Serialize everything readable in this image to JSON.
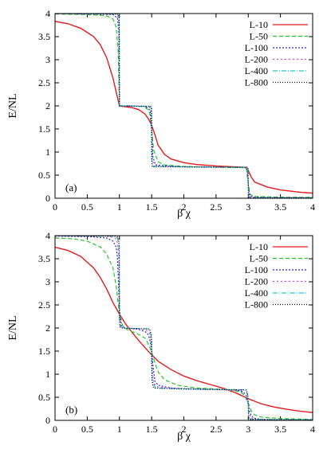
{
  "chart_data": [
    {
      "type": "line",
      "panel_label": "(a)",
      "xlabel": "β χ",
      "ylabel": "E/NL",
      "xlim": [
        0,
        4
      ],
      "ylim": [
        0,
        4
      ],
      "xticks": [
        "0",
        "0.5",
        "1",
        "1.5",
        "2",
        "2.5",
        "3",
        "3.5",
        "4"
      ],
      "yticks": [
        "0",
        "0.5",
        "1",
        "1.5",
        "2",
        "2.5",
        "3",
        "3.5",
        "4"
      ],
      "legend_position": "top-right",
      "series": [
        {
          "name": "L-10",
          "color": "#e41a1c",
          "dash": "solid",
          "x": [
            0,
            0.2,
            0.4,
            0.6,
            0.7,
            0.8,
            0.9,
            0.95,
            1.0,
            1.05,
            1.1,
            1.2,
            1.3,
            1.4,
            1.45,
            1.5,
            1.55,
            1.6,
            1.7,
            1.8,
            2.0,
            2.2,
            2.5,
            2.8,
            2.95,
            3.0,
            3.05,
            3.1,
            3.3,
            3.5,
            3.8,
            4.0
          ],
          "y": [
            3.83,
            3.78,
            3.68,
            3.5,
            3.33,
            3.05,
            2.6,
            2.3,
            2.0,
            1.99,
            1.98,
            1.96,
            1.92,
            1.82,
            1.72,
            1.58,
            1.38,
            1.15,
            0.95,
            0.85,
            0.77,
            0.73,
            0.7,
            0.68,
            0.67,
            0.6,
            0.45,
            0.35,
            0.24,
            0.18,
            0.13,
            0.11
          ]
        },
        {
          "name": "L-50",
          "color": "#22c822",
          "dash": "5,3",
          "x": [
            0,
            0.5,
            0.8,
            0.9,
            0.95,
            0.98,
            1.0,
            1.02,
            1.05,
            1.2,
            1.4,
            1.47,
            1.5,
            1.53,
            1.6,
            1.7,
            2.0,
            2.5,
            2.97,
            3.0,
            3.03,
            3.1,
            3.3,
            3.6,
            4.0
          ],
          "y": [
            3.99,
            3.98,
            3.95,
            3.88,
            3.7,
            3.2,
            2.0,
            2.0,
            2.0,
            2.0,
            1.98,
            1.85,
            1.5,
            1.05,
            0.79,
            0.72,
            0.69,
            0.67,
            0.66,
            0.3,
            0.08,
            0.04,
            0.03,
            0.02,
            0.02
          ]
        },
        {
          "name": "L-100",
          "color": "#2b2bd8",
          "dash": "2,2",
          "x": [
            0,
            0.9,
            0.97,
            0.99,
            1.0,
            1.01,
            1.03,
            1.4,
            1.48,
            1.5,
            1.52,
            1.56,
            2.0,
            2.98,
            3.0,
            3.02,
            3.1,
            4.0
          ],
          "y": [
            4.0,
            3.98,
            3.9,
            3.6,
            2.0,
            2.0,
            2.0,
            1.99,
            1.9,
            1.5,
            0.9,
            0.72,
            0.68,
            0.67,
            0.3,
            0.06,
            0.02,
            0.01
          ]
        },
        {
          "name": "L-200",
          "color": "#e040e0",
          "dash": "2,3",
          "x": [
            0,
            0.95,
            0.985,
            0.995,
            1.0,
            1.005,
            1.02,
            1.45,
            1.49,
            1.5,
            1.51,
            1.54,
            2.0,
            2.99,
            3.0,
            3.01,
            3.06,
            4.0
          ],
          "y": [
            4.0,
            3.99,
            3.9,
            3.7,
            2.0,
            2.0,
            2.0,
            1.99,
            1.93,
            1.5,
            0.85,
            0.7,
            0.68,
            0.67,
            0.3,
            0.05,
            0.01,
            0.01
          ]
        },
        {
          "name": "L-400",
          "color": "#20c8c8",
          "dash": "6,2,1,2",
          "x": [
            0,
            0.97,
            0.992,
            0.998,
            1.0,
            1.003,
            1.01,
            1.47,
            1.495,
            1.5,
            1.505,
            1.52,
            2.0,
            2.995,
            3.0,
            3.005,
            3.03,
            4.0
          ],
          "y": [
            4.0,
            3.99,
            3.92,
            3.75,
            2.0,
            2.0,
            2.0,
            1.99,
            1.95,
            1.5,
            0.8,
            0.69,
            0.68,
            0.67,
            0.3,
            0.04,
            0.01,
            0.01
          ]
        },
        {
          "name": "L-800",
          "color": "#000000",
          "dash": "1,2",
          "x": [
            0,
            0.985,
            0.996,
            1.0,
            1.002,
            1.006,
            1.485,
            1.498,
            1.5,
            1.502,
            1.51,
            2.0,
            2.998,
            3.0,
            3.003,
            3.02,
            4.0
          ],
          "y": [
            4.0,
            3.99,
            3.93,
            2.0,
            2.0,
            2.0,
            1.99,
            1.96,
            1.5,
            0.78,
            0.68,
            0.68,
            0.67,
            0.3,
            0.03,
            0.01,
            0.01
          ]
        }
      ]
    },
    {
      "type": "line",
      "panel_label": "(b)",
      "xlabel": "β χ",
      "ylabel": "E/NL",
      "xlim": [
        0,
        4
      ],
      "ylim": [
        0,
        4
      ],
      "xticks": [
        "0",
        "0.5",
        "1",
        "1.5",
        "2",
        "2.5",
        "3",
        "3.5",
        "4"
      ],
      "yticks": [
        "0",
        "0.5",
        "1",
        "1.5",
        "2",
        "2.5",
        "3",
        "3.5",
        "4"
      ],
      "legend_position": "top-right",
      "series": [
        {
          "name": "L-10",
          "color": "#e41a1c",
          "dash": "solid",
          "x": [
            0,
            0.2,
            0.4,
            0.6,
            0.7,
            0.8,
            0.9,
            1.0,
            1.1,
            1.2,
            1.3,
            1.4,
            1.5,
            1.6,
            1.8,
            2.0,
            2.2,
            2.4,
            2.6,
            2.8,
            3.0,
            3.2,
            3.4,
            3.6,
            3.8,
            4.0
          ],
          "y": [
            3.75,
            3.68,
            3.55,
            3.3,
            3.1,
            2.85,
            2.55,
            2.3,
            2.08,
            1.9,
            1.73,
            1.57,
            1.42,
            1.28,
            1.1,
            0.96,
            0.86,
            0.78,
            0.7,
            0.6,
            0.47,
            0.36,
            0.29,
            0.24,
            0.2,
            0.17
          ]
        },
        {
          "name": "L-50",
          "color": "#22c822",
          "dash": "5,3",
          "x": [
            0,
            0.3,
            0.5,
            0.7,
            0.8,
            0.9,
            0.95,
            1.0,
            1.05,
            1.1,
            1.2,
            1.3,
            1.4,
            1.45,
            1.5,
            1.55,
            1.6,
            1.7,
            1.9,
            2.2,
            2.5,
            2.8,
            2.9,
            2.95,
            3.0,
            3.05,
            3.1,
            3.2,
            3.5,
            4.0
          ],
          "y": [
            3.95,
            3.93,
            3.88,
            3.76,
            3.6,
            3.3,
            2.9,
            2.3,
            2.05,
            1.98,
            1.92,
            1.86,
            1.78,
            1.65,
            1.48,
            1.25,
            1.05,
            0.88,
            0.76,
            0.7,
            0.68,
            0.64,
            0.6,
            0.52,
            0.38,
            0.2,
            0.12,
            0.07,
            0.04,
            0.02
          ]
        },
        {
          "name": "L-100",
          "color": "#2b2bd8",
          "dash": "2,2",
          "x": [
            0,
            0.5,
            0.8,
            0.9,
            0.95,
            0.97,
            1.0,
            1.03,
            1.06,
            1.1,
            1.3,
            1.4,
            1.45,
            1.48,
            1.5,
            1.52,
            1.55,
            1.6,
            1.8,
            2.2,
            2.8,
            2.92,
            2.97,
            3.0,
            3.03,
            3.08,
            3.2,
            4.0
          ],
          "y": [
            3.99,
            3.98,
            3.95,
            3.88,
            3.75,
            3.5,
            2.4,
            2.05,
            2.02,
            2.0,
            1.97,
            1.92,
            1.85,
            1.7,
            1.5,
            1.2,
            0.85,
            0.76,
            0.7,
            0.68,
            0.66,
            0.62,
            0.52,
            0.35,
            0.15,
            0.05,
            0.02,
            0.01
          ]
        },
        {
          "name": "L-200",
          "color": "#e040e0",
          "dash": "2,3",
          "x": [
            0,
            0.8,
            0.93,
            0.97,
            0.99,
            1.0,
            1.01,
            1.03,
            1.1,
            1.4,
            1.47,
            1.49,
            1.5,
            1.51,
            1.53,
            1.6,
            2.0,
            2.9,
            2.97,
            2.99,
            3.0,
            3.01,
            3.04,
            3.1,
            4.0
          ],
          "y": [
            4.0,
            3.99,
            3.95,
            3.85,
            3.5,
            2.4,
            2.08,
            2.02,
            2.0,
            1.97,
            1.88,
            1.7,
            1.5,
            1.2,
            0.8,
            0.72,
            0.68,
            0.65,
            0.55,
            0.42,
            0.35,
            0.2,
            0.05,
            0.02,
            0.01
          ]
        },
        {
          "name": "L-400",
          "color": "#20c8c8",
          "dash": "6,2,1,2",
          "x": [
            0,
            0.9,
            0.97,
            0.99,
            0.996,
            1.0,
            1.004,
            1.01,
            1.05,
            1.45,
            1.49,
            1.497,
            1.5,
            1.503,
            1.51,
            1.56,
            2.0,
            2.95,
            2.99,
            2.996,
            3.0,
            3.004,
            3.01,
            3.05,
            4.0
          ],
          "y": [
            4.0,
            3.99,
            3.95,
            3.8,
            3.4,
            2.4,
            2.1,
            2.03,
            2.0,
            1.98,
            1.85,
            1.7,
            1.5,
            1.2,
            0.85,
            0.7,
            0.68,
            0.66,
            0.55,
            0.43,
            0.35,
            0.2,
            0.06,
            0.02,
            0.01
          ]
        },
        {
          "name": "L-800",
          "color": "#000000",
          "dash": "1,2",
          "x": [
            0,
            0.95,
            0.985,
            0.996,
            0.999,
            1.0,
            1.002,
            1.006,
            1.03,
            1.47,
            1.494,
            1.499,
            1.5,
            1.501,
            1.506,
            1.53,
            2.0,
            2.97,
            2.994,
            2.999,
            3.0,
            3.002,
            3.006,
            3.03,
            4.0
          ],
          "y": [
            4.0,
            3.99,
            3.95,
            3.8,
            3.4,
            2.4,
            2.12,
            2.03,
            2.0,
            1.98,
            1.85,
            1.7,
            1.5,
            1.2,
            0.85,
            0.7,
            0.68,
            0.66,
            0.55,
            0.43,
            0.35,
            0.2,
            0.06,
            0.02,
            0.01
          ]
        }
      ]
    }
  ]
}
